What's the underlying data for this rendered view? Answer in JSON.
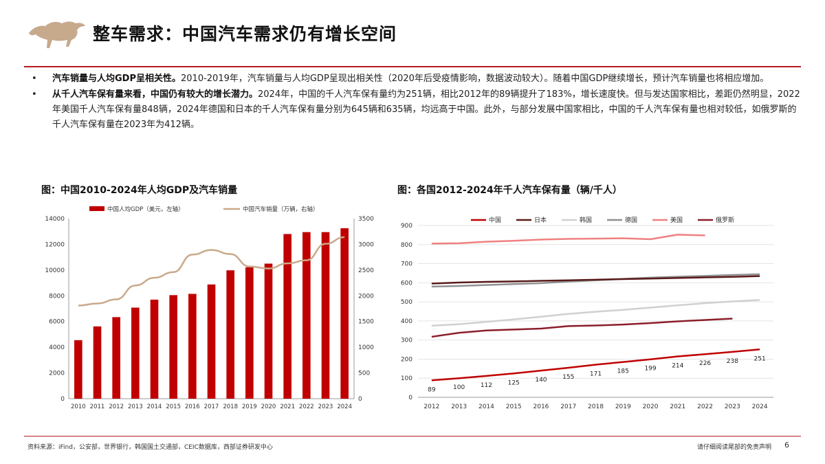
{
  "header": {
    "title": "整车需求：中国汽车需求仍有增长空间"
  },
  "bullets": [
    {
      "bold": "汽车销量与人均GDP呈相关性。",
      "text": "2010-2019年，汽车销量与人均GDP呈现出相关性（2020年后受疫情影响，数据波动较大）。随着中国GDP继续增长，预计汽车销量也将相应增加。"
    },
    {
      "bold": "从千人汽车保有量来看，中国仍有较大的增长潜力。",
      "text": "2024年，中国的千人汽车保有量约为251辆，相比2012年的89辆提升了183%，增长速度快。但与发达国家相比，差距仍然明显，2022年美国千人汽车保有量848辆，2024年德国和日本的千人汽车保有量分别为645辆和635辆，均远高于中国。此外，与部分发展中国家相比，中国的千人汽车保有量也相对较低，如俄罗斯的千人汽车保有量在2023年为412辆。"
    }
  ],
  "bullet_glyph": "•",
  "chart_data": [
    {
      "type": "bar",
      "caption": "图：中国2010-2024年人均GDP及汽车销量",
      "categories": [
        "2010",
        "2011",
        "2012",
        "2013",
        "2014",
        "2015",
        "2016",
        "2017",
        "2018",
        "2019",
        "2020",
        "2021",
        "2022",
        "2023",
        "2024"
      ],
      "series": [
        {
          "name": "中国人均GDP（美元，左轴）",
          "type": "bar",
          "axis": "left",
          "color": "#c00000",
          "values": [
            4550,
            5620,
            6340,
            7080,
            7700,
            8050,
            8150,
            8880,
            9980,
            10220,
            10500,
            12800,
            12950,
            12950,
            13250
          ]
        },
        {
          "name": "中国汽车销量（万辆，右轴）",
          "type": "line",
          "axis": "right",
          "color": "#c9a98a",
          "values": [
            1810,
            1850,
            1930,
            2200,
            2350,
            2460,
            2800,
            2890,
            2810,
            2570,
            2530,
            2630,
            2690,
            3010,
            3140
          ]
        }
      ],
      "ylim_left": [
        0,
        14000
      ],
      "yticks_left": [
        0,
        2000,
        4000,
        6000,
        8000,
        10000,
        12000,
        14000
      ],
      "ylim_right": [
        0,
        3500
      ],
      "yticks_right": [
        0,
        500,
        1000,
        1500,
        2000,
        2500,
        3000,
        3500
      ],
      "legend": "top",
      "grid": false
    },
    {
      "type": "line",
      "caption": "图：各国2012-2024年千人汽车保有量（辆/千人）",
      "x": [
        "2012",
        "2013",
        "2014",
        "2015",
        "2016",
        "2017",
        "2018",
        "2019",
        "2020",
        "2021",
        "2022",
        "2023",
        "2024"
      ],
      "series": [
        {
          "name": "中国",
          "color": "#c00000",
          "values": [
            89,
            100,
            112,
            125,
            140,
            155,
            171,
            185,
            199,
            214,
            226,
            238,
            251
          ],
          "labels": [
            "89",
            "100",
            "112",
            "125",
            "140",
            "155",
            "171",
            "185",
            "199",
            "214",
            "226",
            "238",
            "251"
          ]
        },
        {
          "name": "日本",
          "color": "#5a1a1a",
          "values": [
            596,
            601,
            605,
            607,
            610,
            613,
            616,
            619,
            622,
            625,
            628,
            631,
            635
          ]
        },
        {
          "name": "韩国",
          "color": "#d0d0d0",
          "values": [
            375,
            383,
            395,
            408,
            422,
            437,
            448,
            458,
            470,
            482,
            493,
            502,
            510
          ]
        },
        {
          "name": "德国",
          "color": "#909090",
          "values": [
            580,
            583,
            588,
            593,
            598,
            606,
            613,
            620,
            627,
            632,
            636,
            641,
            645
          ]
        },
        {
          "name": "美国",
          "color": "#f08080",
          "values": [
            805,
            807,
            815,
            820,
            826,
            830,
            831,
            833,
            828,
            852,
            848,
            null,
            null
          ]
        },
        {
          "name": "俄罗斯",
          "color": "#8b1e2b",
          "values": [
            317,
            338,
            350,
            355,
            360,
            373,
            376,
            381,
            389,
            398,
            405,
            412,
            null
          ]
        }
      ],
      "ylim": [
        0,
        900
      ],
      "yticks": [
        0,
        100,
        200,
        300,
        400,
        500,
        600,
        700,
        800,
        900
      ],
      "legend": "top",
      "grid": true
    }
  ],
  "footer": {
    "source": "资料来源：iFind，公安部，世界银行，韩国国土交通部，CEIC数据库，西部证券研发中心",
    "disclaimer": "请仔细阅读尾部的免责声明",
    "page": "6"
  }
}
